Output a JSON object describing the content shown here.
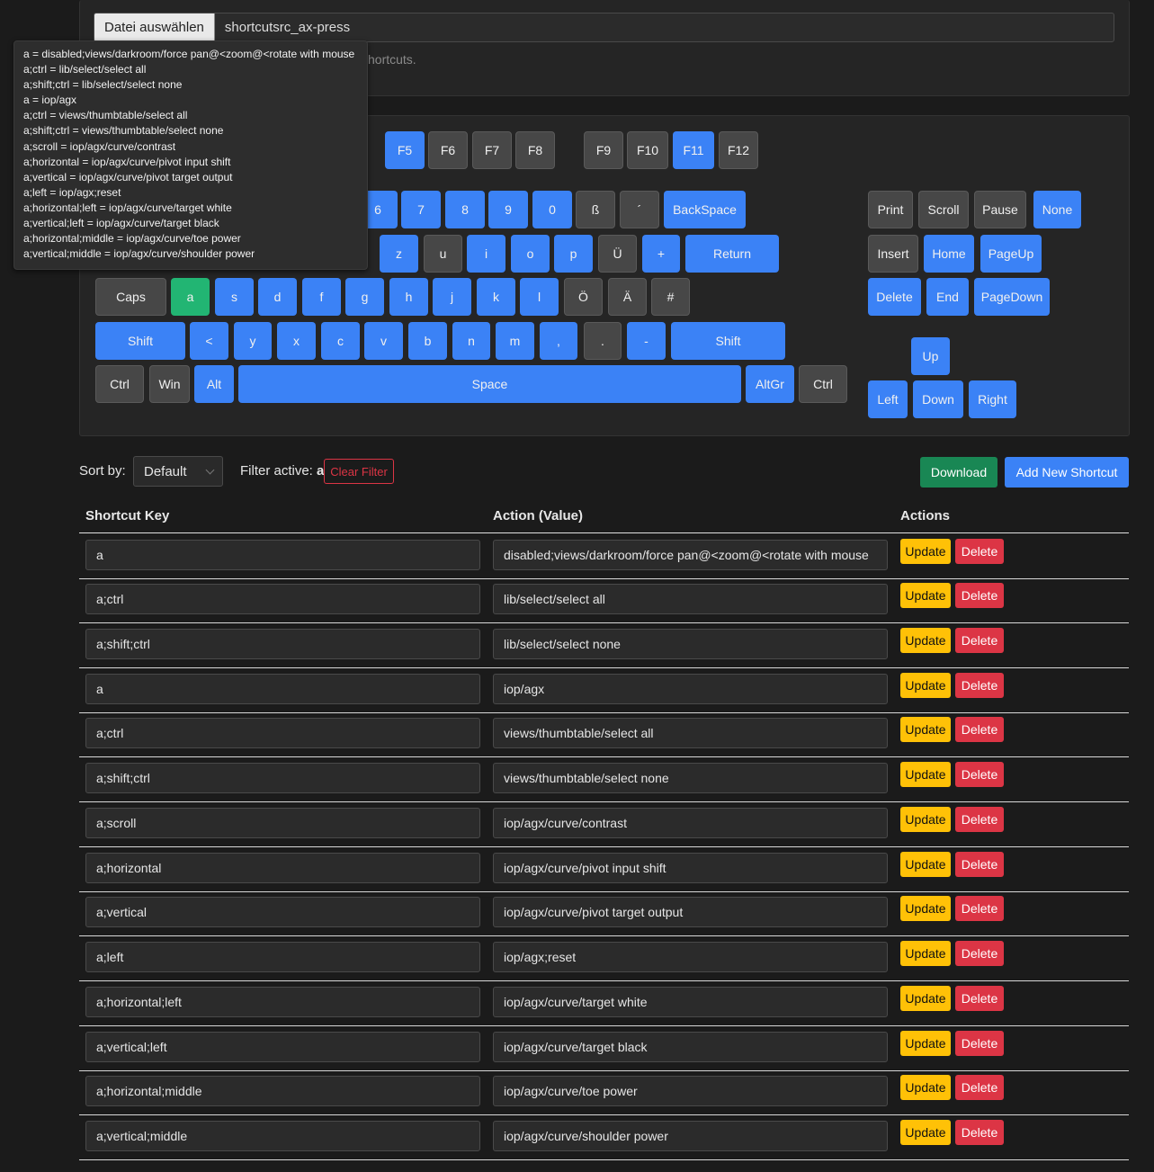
{
  "upload": {
    "button_label": "Datei auswählen",
    "file_name": "shortcutsrc_ax-press",
    "hint_visible": "hortcuts."
  },
  "tooltip": [
    "a = disabled;views/darkroom/force pan@<zoom@<rotate with mouse",
    "a;ctrl = lib/select/select all",
    "a;shift;ctrl = lib/select/select none",
    "a = iop/agx",
    "a;ctrl = views/thumbtable/select all",
    "a;shift;ctrl = views/thumbtable/select none",
    "a;scroll = iop/agx/curve/contrast",
    "a;horizontal = iop/agx/curve/pivot input shift",
    "a;vertical = iop/agx/curve/pivot target output",
    "a;left = iop/agx;reset",
    "a;horizontal;left = iop/agx/curve/target white",
    "a;vertical;left = iop/agx/curve/target black",
    "a;horizontal;middle = iop/agx/curve/toe power",
    "a;vertical;middle = iop/agx/curve/shoulder power"
  ],
  "keyboard": {
    "fkeys": [
      "F5",
      "F6",
      "F7",
      "F8",
      "F9",
      "F10",
      "F11",
      "F12"
    ],
    "number_row": [
      "6",
      "7",
      "8",
      "9",
      "0",
      "ß",
      "´",
      "BackSpace"
    ],
    "top_row": [
      "z",
      "u",
      "i",
      "o",
      "p",
      "Ü",
      "+",
      "Return"
    ],
    "home_row": [
      "Caps",
      "a",
      "s",
      "d",
      "f",
      "g",
      "h",
      "j",
      "k",
      "l",
      "Ö",
      "Ä",
      "#"
    ],
    "shift_row": [
      "Shift",
      "<",
      "y",
      "x",
      "c",
      "v",
      "b",
      "n",
      "m",
      ",",
      ".",
      "-",
      "Shift"
    ],
    "bottom_row": [
      "Ctrl",
      "Win",
      "Alt",
      "Space",
      "AltGr",
      "Ctrl"
    ],
    "system": [
      "Print",
      "Scroll",
      "Pause",
      "None"
    ],
    "nav1": [
      "Insert",
      "Home",
      "PageUp"
    ],
    "nav2": [
      "Delete",
      "End",
      "PageDown"
    ],
    "arrows": [
      "Up",
      "Left",
      "Down",
      "Right"
    ],
    "colors": {
      "mapped": "#3b82f6",
      "unmapped": "#474747",
      "active": "#22b573"
    }
  },
  "controls": {
    "sort_label": "Sort by:",
    "sort_value": "Default",
    "filter_label": "Filter active:",
    "filter_value": "a",
    "clear_filter": "Clear Filter",
    "download": "Download",
    "add_new": "Add New Shortcut"
  },
  "table": {
    "headers": [
      "Shortcut Key",
      "Action (Value)",
      "Actions"
    ],
    "update_label": "Update",
    "delete_label": "Delete",
    "rows": [
      {
        "key": "a",
        "action": "disabled;views/darkroom/force pan@<zoom@<rotate with mouse"
      },
      {
        "key": "a;ctrl",
        "action": "lib/select/select all"
      },
      {
        "key": "a;shift;ctrl",
        "action": "lib/select/select none"
      },
      {
        "key": "a",
        "action": "iop/agx"
      },
      {
        "key": "a;ctrl",
        "action": "views/thumbtable/select all"
      },
      {
        "key": "a;shift;ctrl",
        "action": "views/thumbtable/select none"
      },
      {
        "key": "a;scroll",
        "action": "iop/agx/curve/contrast"
      },
      {
        "key": "a;horizontal",
        "action": "iop/agx/curve/pivot input shift"
      },
      {
        "key": "a;vertical",
        "action": "iop/agx/curve/pivot target output"
      },
      {
        "key": "a;left",
        "action": "iop/agx;reset"
      },
      {
        "key": "a;horizontal;left",
        "action": "iop/agx/curve/target white"
      },
      {
        "key": "a;vertical;left",
        "action": "iop/agx/curve/target black"
      },
      {
        "key": "a;horizontal;middle",
        "action": "iop/agx/curve/toe power"
      },
      {
        "key": "a;vertical;middle",
        "action": "iop/agx/curve/shoulder power"
      }
    ]
  }
}
